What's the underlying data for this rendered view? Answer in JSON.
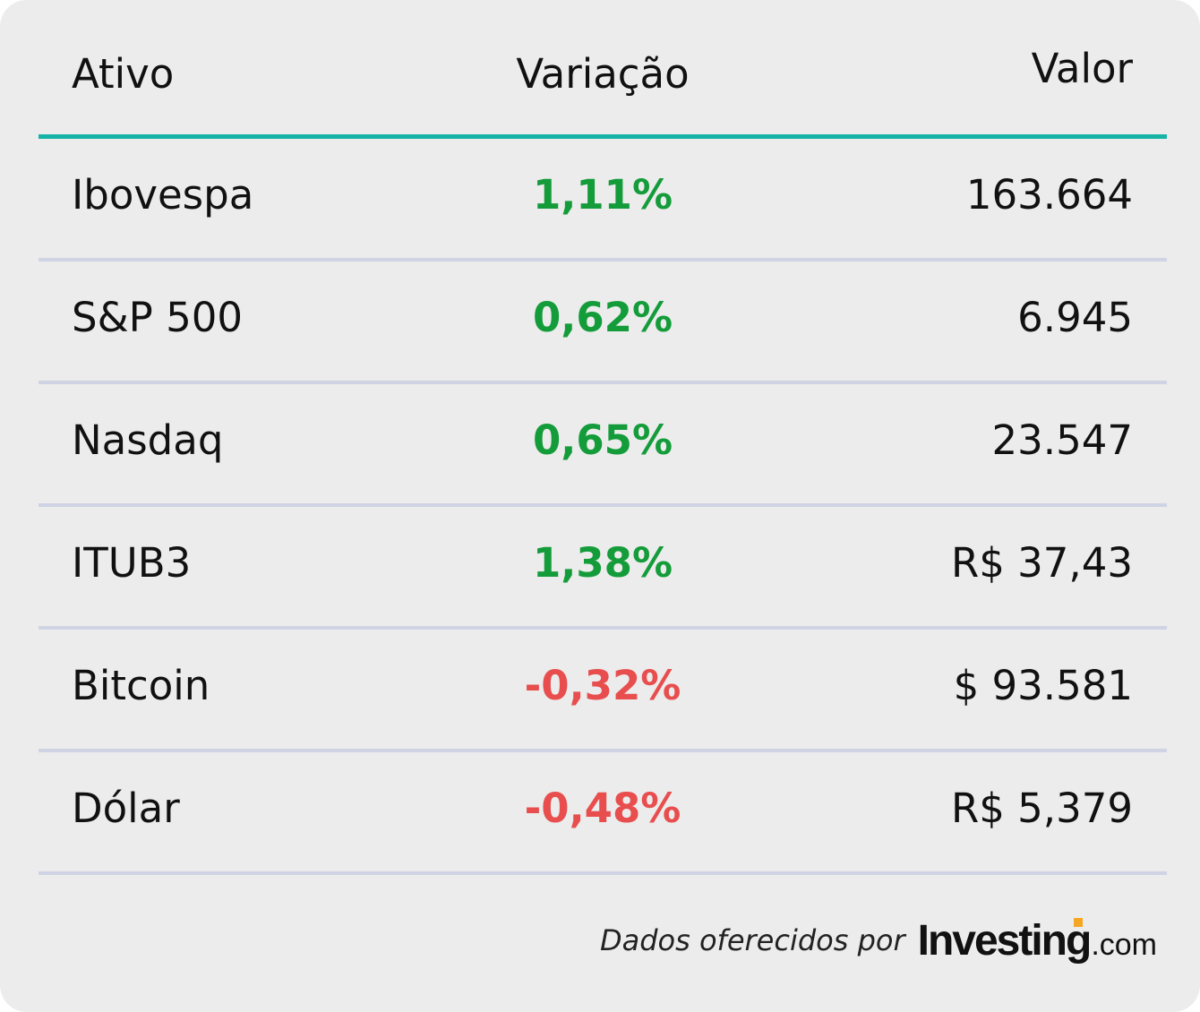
{
  "table": {
    "headers": {
      "asset": "Ativo",
      "change": "Variação",
      "value": "Valor"
    },
    "rows": [
      {
        "asset": "Ibovespa",
        "change": "1,11%",
        "value": "163.664",
        "direction": "up"
      },
      {
        "asset": "S&P 500",
        "change": "0,62%",
        "value": "6.945",
        "direction": "up"
      },
      {
        "asset": "Nasdaq",
        "change": "0,65%",
        "value": "23.547",
        "direction": "up"
      },
      {
        "asset": "ITUB3",
        "change": "1,38%",
        "value": "R$ 37,43",
        "direction": "up"
      },
      {
        "asset": "Bitcoin",
        "change": "-0,32%",
        "value": "$ 93.581",
        "direction": "down"
      },
      {
        "asset": "Dólar",
        "change": "-0,48%",
        "value": "R$ 5,379",
        "direction": "down"
      }
    ]
  },
  "footer": {
    "caption": "Dados oferecidos por",
    "brand": "Investing",
    "tld": ".com"
  },
  "colors": {
    "up": "#149c3a",
    "down": "#e84e4e",
    "accent_rule": "#17b3a6",
    "row_divider": "#cfd3e3",
    "background": "#ececec",
    "logo_accent": "#f5a623"
  }
}
